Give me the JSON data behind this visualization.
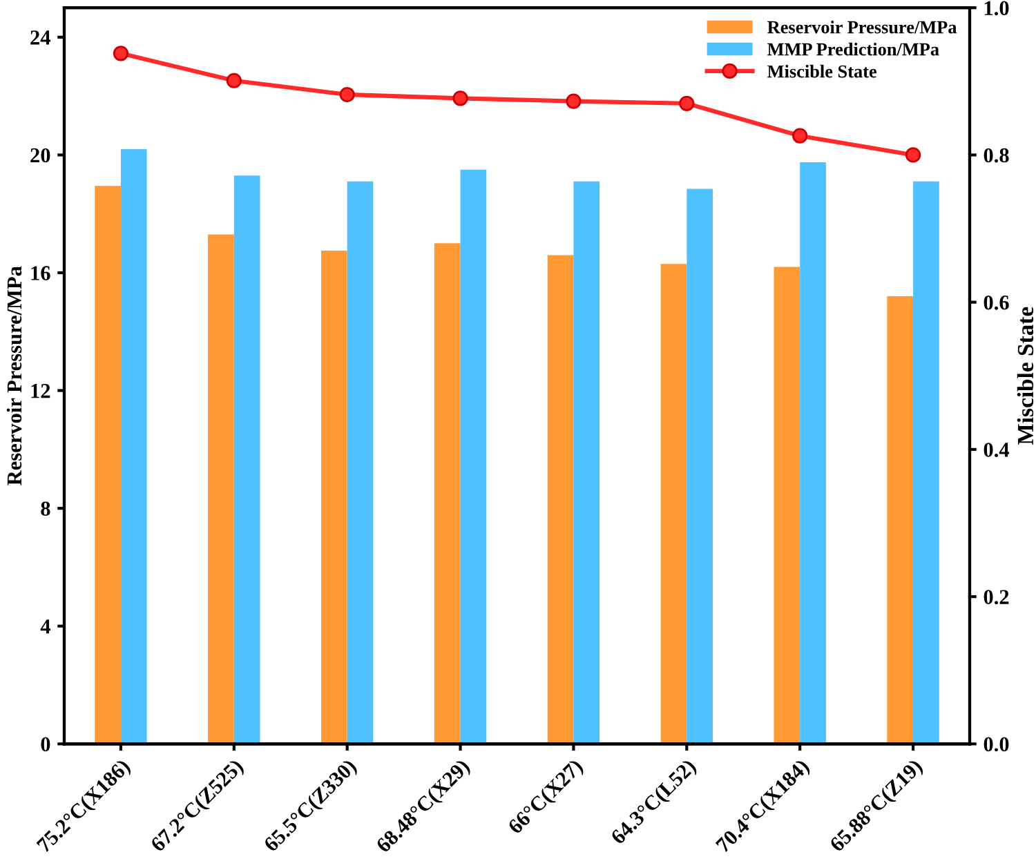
{
  "chart_data": {
    "type": "bar",
    "ylabel": "Reservoir Pressure/MPa",
    "y2label": "Miscible State",
    "categories": [
      "75.2°C(X186)",
      "67.2°C(Z525)",
      "65.5°C(Z330)",
      "68.48°C(X29)",
      "66°C(X27)",
      "64.3°C(L52)",
      "70.4°C(X184)",
      "65.88°C(Z19)"
    ],
    "series": [
      {
        "name": "Reservoir Pressure/MPa",
        "color": "#ff9933",
        "values": [
          18.95,
          17.3,
          16.75,
          17.0,
          16.6,
          16.3,
          16.2,
          15.2
        ]
      },
      {
        "name": "MMP Prediction/MPa",
        "color": "#4fc1ff",
        "values": [
          20.2,
          19.3,
          19.1,
          19.5,
          19.1,
          18.85,
          19.75,
          19.1
        ]
      },
      {
        "name": "Miscible State",
        "type": "line",
        "axis": "y2",
        "color": "#ff2a2a",
        "marker": "circle",
        "values": [
          0.938,
          0.901,
          0.882,
          0.877,
          0.873,
          0.87,
          0.826,
          0.8
        ]
      }
    ],
    "ylim": [
      0,
      25
    ],
    "yticks": [
      0,
      4,
      8,
      12,
      16,
      20,
      24
    ],
    "y2lim": [
      0,
      1.0
    ],
    "y2ticks": [
      {
        "value": 0,
        "label": "0.0"
      },
      0.2,
      0.4,
      0.6,
      0.8,
      {
        "value": 1.0,
        "label": "1.0"
      }
    ],
    "legend": "top right",
    "grid": false
  }
}
